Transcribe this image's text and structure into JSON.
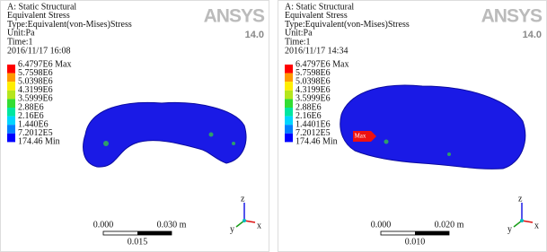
{
  "panels": [
    {
      "header": [
        "A: Static Structural",
        "Equivalent Stress",
        "Type:Equivalent(von-Mises)Stress",
        "Unit:Pa",
        "Time:1",
        "2016/11/17 16:08"
      ],
      "logo": "ANSYS",
      "version": "14.0",
      "legend": {
        "labels": [
          "6.4797E6 Max",
          "5.7598E6",
          "5.0398E6",
          "4.3199E6",
          "3.5999E6",
          "2.88E6",
          "2.16E6",
          "1.440E6",
          "7.2012E5",
          "174.46 Min"
        ],
        "colors": [
          "#ff0000",
          "#ff9900",
          "#ffee00",
          "#b5e61d",
          "#33dd33",
          "#00e6a0",
          "#00d5ff",
          "#0080ff",
          "#0000ff"
        ]
      },
      "scale": {
        "start": "0.000",
        "end": "0.030 m",
        "mid": "0.015"
      },
      "axes": [
        "z",
        "y",
        "x"
      ]
    },
    {
      "header": [
        "A: Static Structural",
        "Equivalent Stress",
        "Type:Equivalent(von-Mises)Stress",
        "Unit:Pa",
        "Time:1",
        "2016/11/17 14:34"
      ],
      "logo": "ANSYS",
      "version": "14.0",
      "legend": {
        "labels": [
          "6.4797E6 Max",
          "5.7598E6",
          "5.0398E6",
          "4.3199E6",
          "3.5999E6",
          "2.88E6",
          "2.16E6",
          "1.4401E6",
          "7.2012E5",
          "174.46 Min"
        ],
        "colors": [
          "#ff0000",
          "#ff9900",
          "#ffee00",
          "#b5e61d",
          "#33dd33",
          "#00e6a0",
          "#00d5ff",
          "#0080ff",
          "#0000ff"
        ]
      },
      "probe": "Max",
      "scale": {
        "start": "0.000",
        "end": "0.020 m",
        "mid": "0.010"
      },
      "axes": [
        "z",
        "y",
        "x"
      ]
    }
  ]
}
